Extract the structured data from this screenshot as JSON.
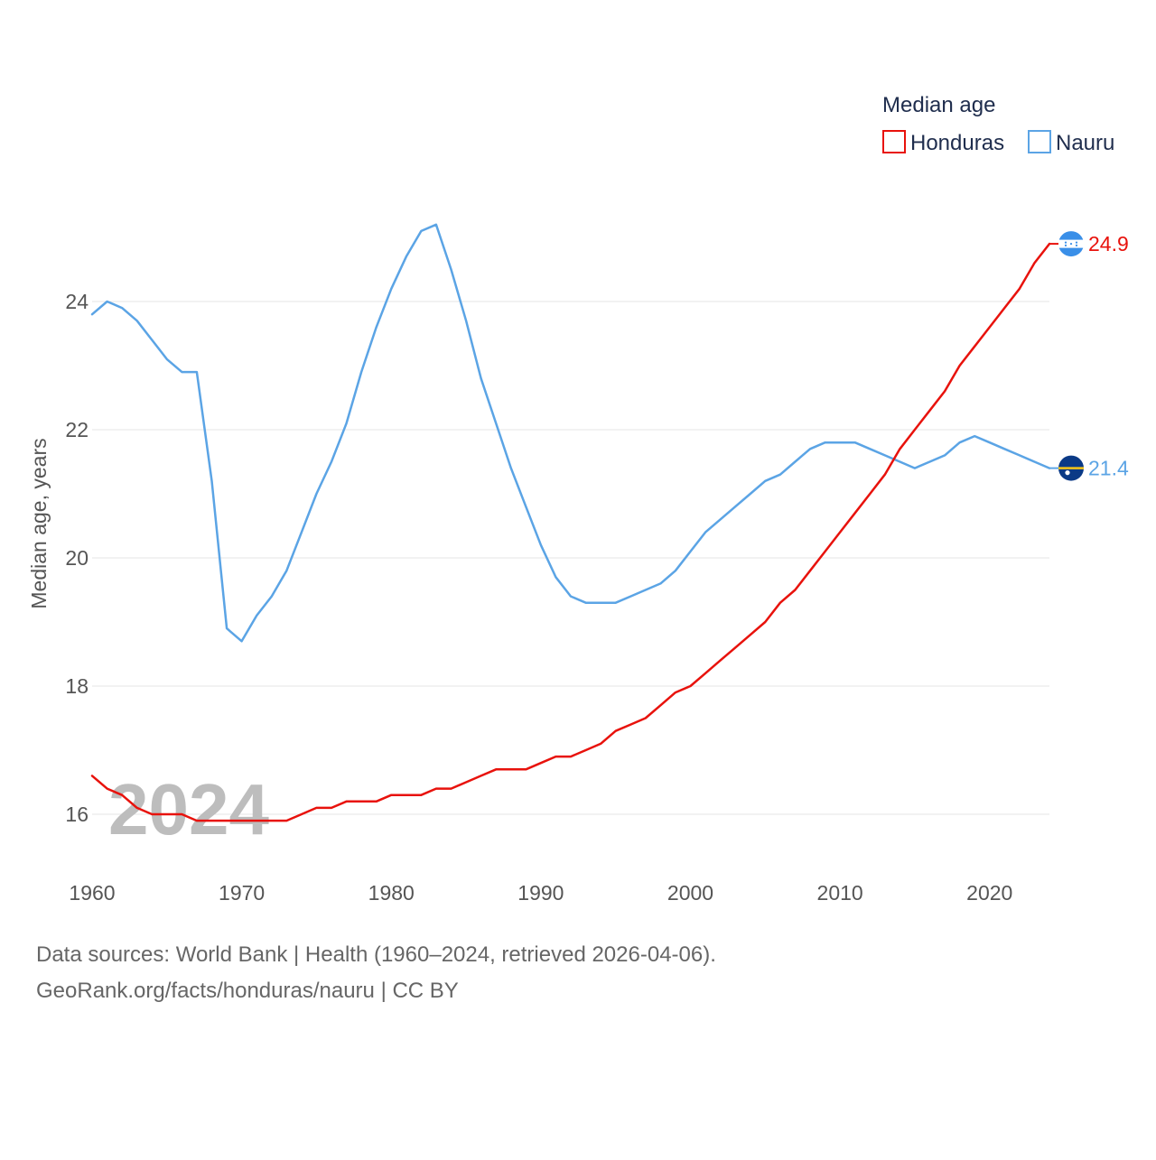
{
  "chart_data": {
    "type": "line",
    "title": "",
    "xlabel": "",
    "ylabel": "Median age, years",
    "xlim": [
      1960,
      2024
    ],
    "ylim": [
      15.2,
      25.6
    ],
    "x_ticks": [
      "1960",
      "1970",
      "1980",
      "1990",
      "2000",
      "2010",
      "2020"
    ],
    "y_ticks": [
      "16",
      "18",
      "20",
      "22",
      "24"
    ],
    "grid": true,
    "year_label": "2024",
    "legend": {
      "title": "Median age",
      "position": "top-right"
    },
    "x": [
      1960,
      1961,
      1962,
      1963,
      1964,
      1965,
      1966,
      1967,
      1968,
      1969,
      1970,
      1971,
      1972,
      1973,
      1974,
      1975,
      1976,
      1977,
      1978,
      1979,
      1980,
      1981,
      1982,
      1983,
      1984,
      1985,
      1986,
      1987,
      1988,
      1989,
      1990,
      1991,
      1992,
      1993,
      1994,
      1995,
      1996,
      1997,
      1998,
      1999,
      2000,
      2001,
      2002,
      2003,
      2004,
      2005,
      2006,
      2007,
      2008,
      2009,
      2010,
      2011,
      2012,
      2013,
      2014,
      2015,
      2016,
      2017,
      2018,
      2019,
      2020,
      2021,
      2022,
      2023,
      2024
    ],
    "series": [
      {
        "name": "Honduras",
        "color": "#e8120c",
        "end_label": "24.9",
        "values": [
          16.6,
          16.4,
          16.3,
          16.1,
          16.0,
          16.0,
          16.0,
          15.9,
          15.9,
          15.9,
          15.9,
          15.9,
          15.9,
          15.9,
          16.0,
          16.1,
          16.1,
          16.2,
          16.2,
          16.2,
          16.3,
          16.3,
          16.3,
          16.4,
          16.4,
          16.5,
          16.6,
          16.7,
          16.7,
          16.7,
          16.8,
          16.9,
          16.9,
          17.0,
          17.1,
          17.3,
          17.4,
          17.5,
          17.7,
          17.9,
          18.0,
          18.2,
          18.4,
          18.6,
          18.8,
          19.0,
          19.3,
          19.5,
          19.8,
          20.1,
          20.4,
          20.7,
          21.0,
          21.3,
          21.7,
          22.0,
          22.3,
          22.6,
          23.0,
          23.3,
          23.6,
          23.9,
          24.2,
          24.6,
          24.9
        ]
      },
      {
        "name": "Nauru",
        "color": "#5ba4e5",
        "end_label": "21.4",
        "values": [
          23.8,
          24.0,
          23.9,
          23.7,
          23.4,
          23.1,
          22.9,
          22.9,
          21.2,
          18.9,
          18.7,
          19.1,
          19.4,
          19.8,
          20.4,
          21.0,
          21.5,
          22.1,
          22.9,
          23.6,
          24.2,
          24.7,
          25.1,
          25.2,
          24.5,
          23.7,
          22.8,
          22.1,
          21.4,
          20.8,
          20.2,
          19.7,
          19.4,
          19.3,
          19.3,
          19.3,
          19.4,
          19.5,
          19.6,
          19.8,
          20.1,
          20.4,
          20.6,
          20.8,
          21.0,
          21.2,
          21.3,
          21.5,
          21.7,
          21.8,
          21.8,
          21.8,
          21.7,
          21.6,
          21.5,
          21.4,
          21.5,
          21.6,
          21.8,
          21.9,
          21.8,
          21.7,
          21.6,
          21.5,
          21.4
        ]
      }
    ]
  },
  "source": {
    "line1": "Data sources: World Bank | Health (1960–2024, retrieved 2026-04-06).",
    "line2": "GeoRank.org/facts/honduras/nauru | CC BY"
  }
}
